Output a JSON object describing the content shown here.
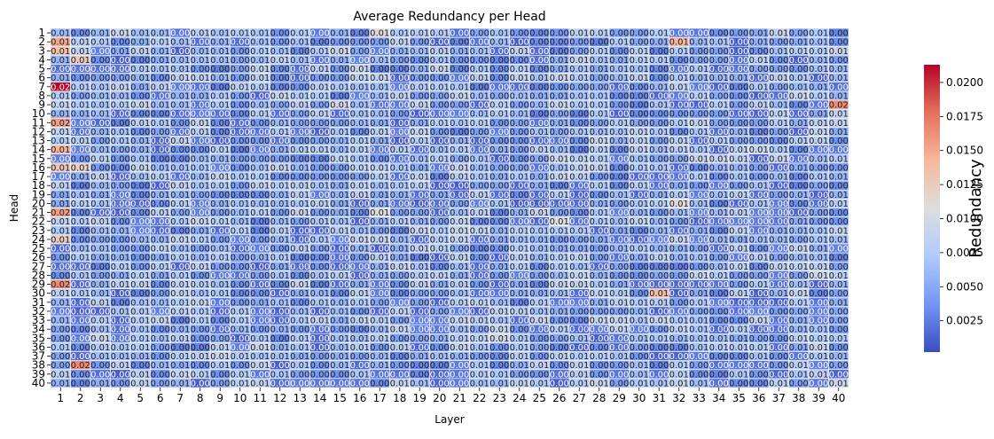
{
  "chart_data": {
    "type": "heatmap",
    "title": "Average Redundancy per Head",
    "xlabel": "Layer",
    "ylabel": "Head",
    "colorbar_label": "Redundancy",
    "x_categories": [
      "1",
      "2",
      "3",
      "4",
      "5",
      "6",
      "7",
      "8",
      "9",
      "10",
      "11",
      "12",
      "13",
      "14",
      "15",
      "16",
      "17",
      "18",
      "19",
      "20",
      "21",
      "22",
      "23",
      "24",
      "25",
      "26",
      "27",
      "28",
      "29",
      "30",
      "31",
      "32",
      "33",
      "34",
      "35",
      "36",
      "37",
      "38",
      "39",
      "40"
    ],
    "y_categories": [
      "1",
      "2",
      "3",
      "4",
      "5",
      "6",
      "7",
      "8",
      "9",
      "10",
      "11",
      "12",
      "13",
      "14",
      "15",
      "16",
      "17",
      "18",
      "19",
      "20",
      "21",
      "22",
      "23",
      "24",
      "25",
      "26",
      "27",
      "28",
      "29",
      "30",
      "31",
      "32",
      "33",
      "34",
      "35",
      "36",
      "37",
      "38",
      "39",
      "40"
    ],
    "value_range": [
      0.0002,
      0.0213
    ],
    "colorbar_ticks": [
      "0.0025",
      "0.0050",
      "0.0075",
      "0.0100",
      "0.0125",
      "0.0150",
      "0.0175",
      "0.0200"
    ],
    "colorbar_tick_values": [
      0.0025,
      0.005,
      0.0075,
      0.01,
      0.0125,
      0.015,
      0.0175,
      0.02
    ],
    "colormap": "coolwarm",
    "colormap_stops": [
      "#3b4cc0",
      "#7396f5",
      "#b0cbfc",
      "#dddddd",
      "#f6b99d",
      "#e5715c",
      "#b40426"
    ],
    "cell_annotation_format": "0.00",
    "cell_border_color": "#ffffff",
    "notable_cells": [
      {
        "head": "2",
        "layer": "1",
        "value": 0.015
      },
      {
        "head": "3",
        "layer": "1",
        "value": 0.0135
      },
      {
        "head": "4",
        "layer": "2",
        "value": 0.0125
      },
      {
        "head": "7",
        "layer": "1",
        "value": 0.0213
      },
      {
        "head": "9",
        "layer": "40",
        "value": 0.0165
      },
      {
        "head": "11",
        "layer": "1",
        "value": 0.0155
      },
      {
        "head": "14",
        "layer": "1",
        "value": 0.0145
      },
      {
        "head": "16",
        "layer": "1",
        "value": 0.013
      },
      {
        "head": "16",
        "layer": "2",
        "value": 0.012
      },
      {
        "head": "21",
        "layer": "1",
        "value": 0.0155
      },
      {
        "head": "24",
        "layer": "1",
        "value": 0.0125
      },
      {
        "head": "29",
        "layer": "1",
        "value": 0.0165
      },
      {
        "head": "38",
        "layer": "2",
        "value": 0.0165
      },
      {
        "head": "2",
        "layer": "32",
        "value": 0.0145
      },
      {
        "head": "30",
        "layer": "31",
        "value": 0.014
      },
      {
        "head": "1",
        "layer": "17",
        "value": 0.011
      },
      {
        "head": "21",
        "layer": "17",
        "value": 0.0105
      },
      {
        "head": "22",
        "layer": "26",
        "value": 0.0105
      },
      {
        "head": "20",
        "layer": "32",
        "value": 0.011
      },
      {
        "head": "28",
        "layer": "39",
        "value": 0.0095
      },
      {
        "head": "9",
        "layer": "15",
        "value": 0.0095
      },
      {
        "head": "35",
        "layer": "23",
        "value": 0.0095
      }
    ],
    "background_level": 0.005,
    "background_spread": 0.004
  }
}
